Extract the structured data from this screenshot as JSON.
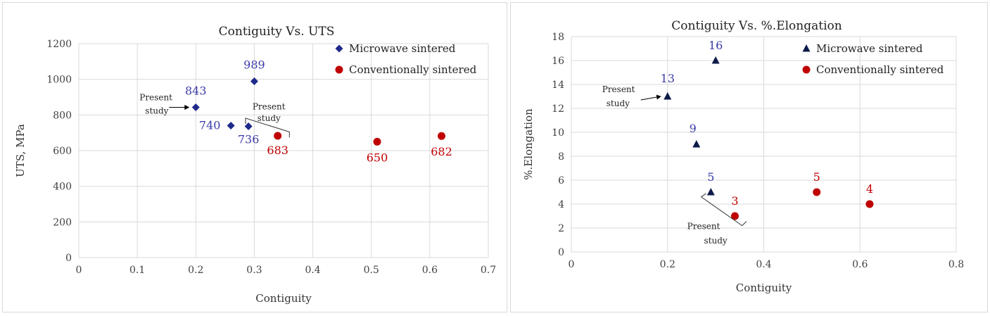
{
  "chart_data": [
    {
      "type": "scatter",
      "title": "Contiguity Vs. UTS",
      "xlabel": "Contiguity",
      "ylabel": "UTS, MPa",
      "xlim": [
        0,
        0.7
      ],
      "ylim": [
        0,
        1200
      ],
      "x_ticks": [
        0,
        0.1,
        0.2,
        0.3,
        0.4,
        0.5,
        0.6,
        0.7
      ],
      "y_ticks": [
        0,
        200,
        400,
        600,
        800,
        1000,
        1200
      ],
      "x_tick_labels": [
        "0",
        "0.1",
        "0.2",
        "0.3",
        "0.4",
        "0.5",
        "0.6",
        "0.7"
      ],
      "y_tick_labels": [
        "0",
        "200",
        "400",
        "600",
        "800",
        "1000",
        "1200"
      ],
      "grid": "horizontal and vertical",
      "legend_position": "top-right",
      "series": [
        {
          "name": "Microwave sintered",
          "marker": "diamond",
          "color": "#1f2a8a",
          "label_color": "#3a3aa8",
          "points": [
            {
              "x": 0.2,
              "y": 843,
              "label": "843"
            },
            {
              "x": 0.26,
              "y": 740,
              "label": "740"
            },
            {
              "x": 0.29,
              "y": 736,
              "label": "736"
            },
            {
              "x": 0.3,
              "y": 989,
              "label": "989"
            }
          ]
        },
        {
          "name": "Conventionally sintered",
          "marker": "circle",
          "color": "#c00000",
          "label_color": "#c00000",
          "points": [
            {
              "x": 0.34,
              "y": 683,
              "label": "683"
            },
            {
              "x": 0.51,
              "y": 650,
              "label": "650"
            },
            {
              "x": 0.62,
              "y": 682,
              "label": "682"
            }
          ]
        }
      ],
      "annotations": [
        {
          "line1": "Present",
          "line2": "study",
          "type": "arrow",
          "target": "843"
        },
        {
          "line1": "Present",
          "line2": "study",
          "type": "bracket"
        }
      ]
    },
    {
      "type": "scatter",
      "title": "Contiguity Vs. %.Elongation",
      "xlabel": "Contiguity",
      "ylabel": "%.Elongation",
      "xlim": [
        0,
        0.8
      ],
      "ylim": [
        0,
        18
      ],
      "x_ticks": [
        0,
        0.2,
        0.4,
        0.6,
        0.8
      ],
      "y_ticks": [
        0,
        2,
        4,
        6,
        8,
        10,
        12,
        14,
        16,
        18
      ],
      "x_tick_labels": [
        "0",
        "0.2",
        "0.4",
        "0.6",
        "0.8"
      ],
      "y_tick_labels": [
        "0",
        "2",
        "4",
        "6",
        "8",
        "10",
        "12",
        "14",
        "16",
        "18"
      ],
      "grid": "horizontal and vertical",
      "legend_position": "top-right",
      "series": [
        {
          "name": "Microwave sintered",
          "marker": "triangle",
          "color": "#0d1b4a",
          "label_color": "#3a3aa8",
          "points": [
            {
              "x": 0.2,
              "y": 13,
              "label": "13"
            },
            {
              "x": 0.26,
              "y": 9,
              "label": "9"
            },
            {
              "x": 0.29,
              "y": 5,
              "label": "5"
            },
            {
              "x": 0.3,
              "y": 16,
              "label": "16"
            }
          ]
        },
        {
          "name": "Conventionally sintered",
          "marker": "circle",
          "color": "#c00000",
          "label_color": "#c00000",
          "points": [
            {
              "x": 0.34,
              "y": 3,
              "label": "3"
            },
            {
              "x": 0.51,
              "y": 5,
              "label": "5"
            },
            {
              "x": 0.62,
              "y": 4,
              "label": "4"
            }
          ]
        }
      ],
      "annotations": [
        {
          "line1": "Present",
          "line2": "study",
          "type": "arrow",
          "target": "13"
        },
        {
          "line1": "Present",
          "line2": "study",
          "type": "bracket"
        }
      ]
    }
  ]
}
